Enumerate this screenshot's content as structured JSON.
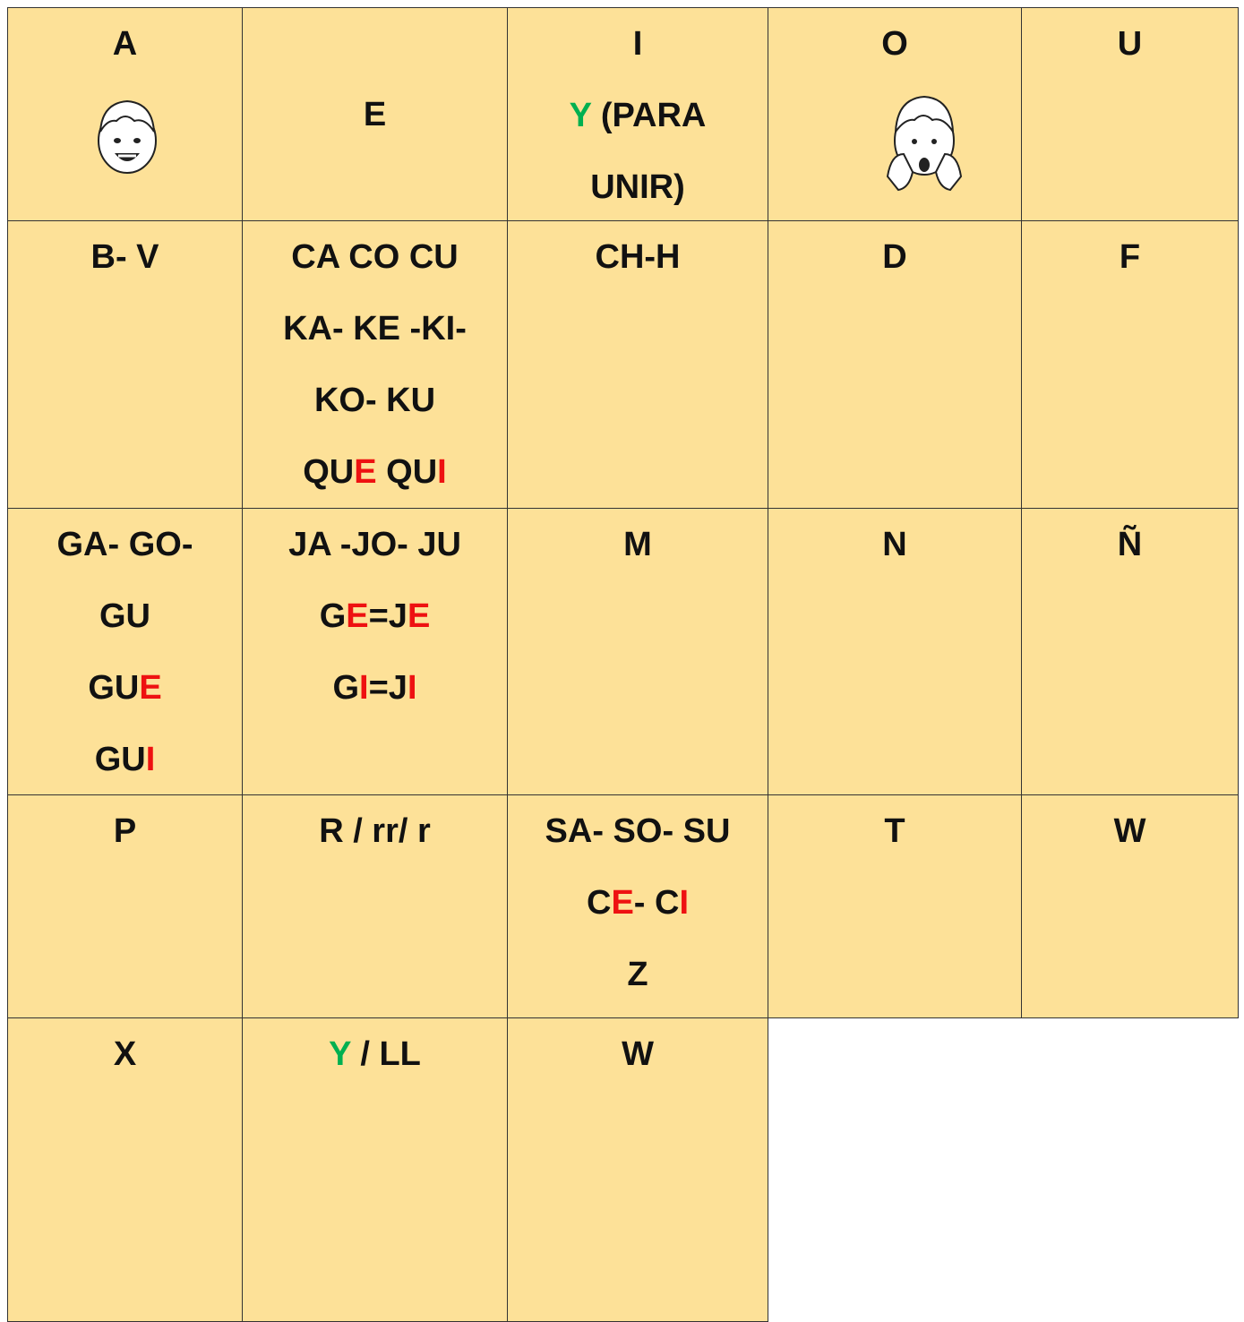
{
  "table": {
    "rows": [
      [
        {
          "lines": [
            [
              {
                "text": "A"
              }
            ]
          ]
        },
        {
          "lines": [
            [
              {
                "text": "E"
              }
            ]
          ]
        },
        {
          "lines": [
            [
              {
                "text": "I"
              }
            ],
            [
              {
                "text": "Y",
                "color": "#00b050"
              },
              {
                "text": " (PARA"
              }
            ],
            [
              {
                "text": "UNIR)"
              }
            ]
          ]
        },
        {
          "lines": [
            [
              {
                "text": "O"
              }
            ]
          ]
        },
        {
          "lines": [
            [
              {
                "text": "U"
              }
            ]
          ]
        }
      ],
      [
        {
          "lines": [
            [
              {
                "text": "B- V"
              }
            ]
          ]
        },
        {
          "lines": [
            [
              {
                "text": "CA CO CU"
              }
            ],
            [
              {
                "text": "KA- KE -KI-"
              }
            ],
            [
              {
                "text": "KO- KU"
              }
            ],
            [
              {
                "text": "QU"
              },
              {
                "text": "E",
                "color": "#ee1111"
              },
              {
                "text": " QU"
              },
              {
                "text": "I",
                "color": "#ee1111"
              }
            ]
          ]
        },
        {
          "lines": [
            [
              {
                "text": "CH-H"
              }
            ]
          ]
        },
        {
          "lines": [
            [
              {
                "text": "D"
              }
            ]
          ]
        },
        {
          "lines": [
            [
              {
                "text": "F"
              }
            ]
          ]
        }
      ],
      [
        {
          "lines": [
            [
              {
                "text": "GA- GO-"
              }
            ],
            [
              {
                "text": "GU"
              }
            ],
            [
              {
                "text": "GU"
              },
              {
                "text": "E",
                "color": "#ee1111"
              }
            ],
            [
              {
                "text": "GU"
              },
              {
                "text": "I",
                "color": "#ee1111"
              }
            ]
          ]
        },
        {
          "lines": [
            [
              {
                "text": "JA -JO- JU"
              }
            ],
            [
              {
                "text": "G"
              },
              {
                "text": "E",
                "color": "#ee1111"
              },
              {
                "text": "=J"
              },
              {
                "text": "E",
                "color": "#ee1111"
              }
            ],
            [
              {
                "text": "G"
              },
              {
                "text": "I",
                "color": "#ee1111"
              },
              {
                "text": "=J"
              },
              {
                "text": "I",
                "color": "#ee1111"
              }
            ]
          ]
        },
        {
          "lines": [
            [
              {
                "text": "M"
              }
            ]
          ]
        },
        {
          "lines": [
            [
              {
                "text": "N"
              }
            ]
          ]
        },
        {
          "lines": [
            [
              {
                "text": "Ñ"
              }
            ]
          ]
        }
      ],
      [
        {
          "lines": [
            [
              {
                "text": "P"
              }
            ]
          ]
        },
        {
          "lines": [
            [
              {
                "text": "R / rr/ r"
              }
            ]
          ]
        },
        {
          "lines": [
            [
              {
                "text": "SA- SO- SU"
              }
            ],
            [
              {
                "text": "C"
              },
              {
                "text": "E",
                "color": "#ee1111"
              },
              {
                "text": "- C"
              },
              {
                "text": "I",
                "color": "#ee1111"
              }
            ],
            [
              {
                "text": "Z"
              }
            ]
          ]
        },
        {
          "lines": [
            [
              {
                "text": "T"
              }
            ]
          ]
        },
        {
          "lines": [
            [
              {
                "text": "W"
              }
            ]
          ]
        }
      ],
      [
        {
          "lines": [
            [
              {
                "text": "X"
              }
            ]
          ]
        },
        {
          "lines": [
            [
              {
                "text": "Y",
                "color": "#00b050"
              },
              {
                "text": " / LL"
              }
            ]
          ]
        },
        {
          "lines": [
            [
              {
                "text": "W"
              }
            ]
          ]
        }
      ]
    ]
  }
}
